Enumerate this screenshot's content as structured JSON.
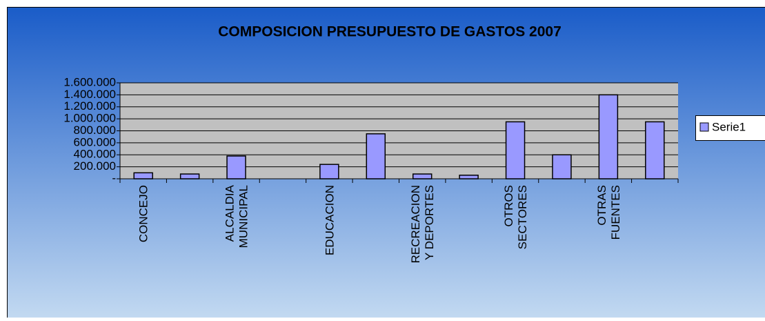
{
  "chart_data": {
    "type": "bar",
    "title": "COMPOSICION PRESUPUESTO DE GASTOS 2007",
    "categories": [
      "CONCEJO",
      null,
      "ALCALDIA\nMUNICIPAL",
      null,
      "EDUCACION",
      null,
      "RECREACION\nY DEPORTES",
      null,
      "OTROS\nSECTORES",
      null,
      "OTRAS\nFUENTES",
      null
    ],
    "series": [
      {
        "name": "Serie1",
        "color": "#9999ff",
        "values": [
          100000,
          80000,
          380000,
          0,
          240000,
          750000,
          80000,
          60000,
          950000,
          400000,
          1400000,
          950000
        ]
      }
    ],
    "ylim": [
      0,
      1600000
    ],
    "yticks": [
      {
        "value": 0,
        "label": "-"
      },
      {
        "value": 200000,
        "label": "200.000"
      },
      {
        "value": 400000,
        "label": "400.000"
      },
      {
        "value": 600000,
        "label": "600.000"
      },
      {
        "value": 800000,
        "label": "800.000"
      },
      {
        "value": 1000000,
        "label": "1.000.000"
      },
      {
        "value": 1200000,
        "label": "1.200.000"
      },
      {
        "value": 1400000,
        "label": "1.400.000"
      },
      {
        "value": 1600000,
        "label": "1.600.000"
      }
    ],
    "grid": true,
    "legend": "right"
  }
}
